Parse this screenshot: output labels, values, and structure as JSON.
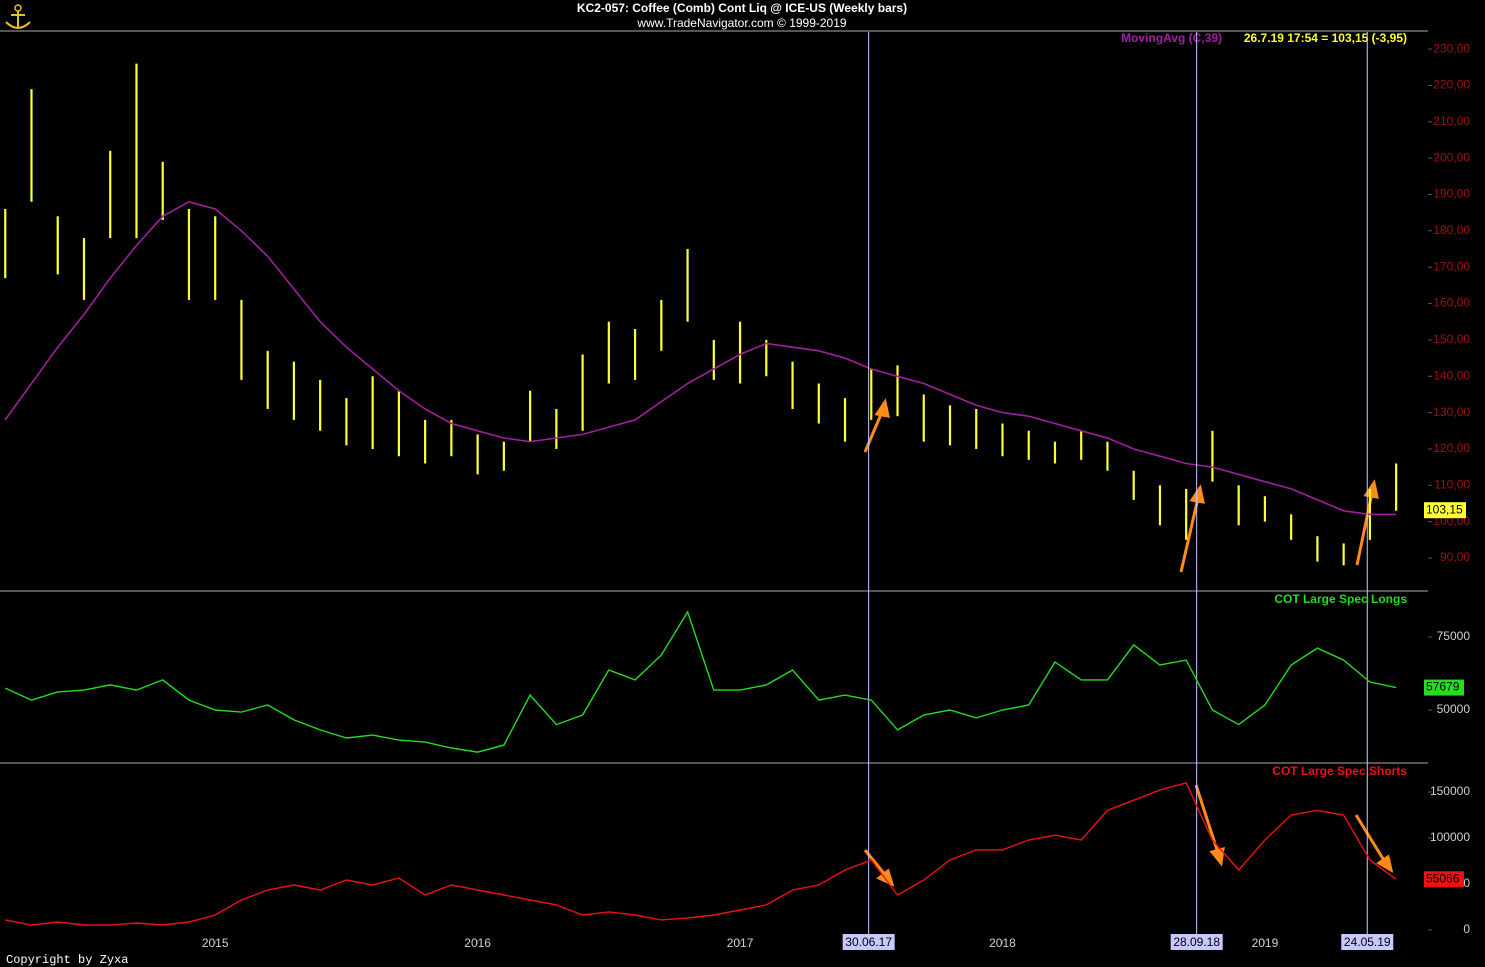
{
  "header": {
    "title": "KC2-057:  Coffee (Comb) Cont Liq @ ICE-US  (Weekly bars)",
    "subtitle": "www.TradeNavigator.com © 1999-2019"
  },
  "footer": "Copyright by Zyxa",
  "chart_data": [
    {
      "type": "range-bar",
      "color": "#ffff33",
      "xlim": [
        2014.18,
        2019.61
      ],
      "ylim": [
        81.2,
        234.7
      ],
      "yticks": [
        {
          "value": 90,
          "label": "90,00"
        },
        {
          "value": 100,
          "label": "100,00"
        },
        {
          "value": 110,
          "label": "110,00"
        },
        {
          "value": 120,
          "label": "120,00"
        },
        {
          "value": 130,
          "label": "130,00"
        },
        {
          "value": 140,
          "label": "140,00"
        },
        {
          "value": 150,
          "label": "150,00"
        },
        {
          "value": 160,
          "label": "160,00"
        },
        {
          "value": 170,
          "label": "170,00"
        },
        {
          "value": 180,
          "label": "180,00"
        },
        {
          "value": 190,
          "label": "190,00"
        },
        {
          "value": 200,
          "label": "200,00"
        },
        {
          "value": 210,
          "label": "210,00"
        },
        {
          "value": 220,
          "label": "220,00"
        },
        {
          "value": 230,
          "label": "230,00"
        }
      ],
      "tick_color": "#a01010",
      "x": [
        2014.2,
        2014.3,
        2014.4,
        2014.5,
        2014.6,
        2014.7,
        2014.8,
        2014.9,
        2015.0,
        2015.1,
        2015.2,
        2015.3,
        2015.4,
        2015.5,
        2015.6,
        2015.7,
        2015.8,
        2015.9,
        2016.0,
        2016.1,
        2016.2,
        2016.3,
        2016.4,
        2016.5,
        2016.6,
        2016.7,
        2016.8,
        2016.9,
        2017.0,
        2017.1,
        2017.2,
        2017.3,
        2017.4,
        2017.5,
        2017.6,
        2017.7,
        2017.8,
        2017.9,
        2018.0,
        2018.1,
        2018.2,
        2018.3,
        2018.4,
        2018.5,
        2018.6,
        2018.7,
        2018.8,
        2018.9,
        2019.0,
        2019.1,
        2019.2,
        2019.3,
        2019.4,
        2019.5
      ],
      "high": [
        186,
        219,
        184,
        178,
        202,
        226,
        199,
        186,
        184,
        161,
        147,
        144,
        139,
        134,
        140,
        136,
        128,
        128,
        124,
        122,
        136,
        131,
        146,
        155,
        153,
        161,
        175,
        150,
        155,
        150,
        144,
        138,
        134,
        142,
        143,
        135,
        132,
        131,
        127,
        125,
        122,
        125,
        122,
        114,
        110,
        109,
        125,
        110,
        107,
        102,
        96,
        94,
        109,
        116
      ],
      "low": [
        167,
        188,
        168,
        161,
        178,
        178,
        183,
        161,
        161,
        139,
        131,
        128,
        125,
        121,
        120,
        118,
        116,
        118,
        113,
        114,
        122,
        120,
        125,
        138,
        139,
        147,
        155,
        139,
        138,
        140,
        131,
        127,
        122,
        128,
        129,
        122,
        121,
        120,
        118,
        117,
        116,
        117,
        114,
        106,
        99,
        95,
        111,
        99,
        100,
        95,
        89,
        88,
        95,
        103
      ],
      "moving_average": {
        "name": "MovingAvg (C,39)",
        "color": "#a020a0",
        "values": [
          128,
          138,
          148,
          157,
          167,
          176,
          184,
          188,
          186,
          180,
          173,
          164,
          155,
          148,
          142,
          136,
          131,
          127,
          125,
          123,
          122,
          123,
          124,
          126,
          128,
          133,
          138,
          142,
          146,
          149,
          148,
          147,
          145,
          142,
          140,
          138,
          135,
          132,
          130,
          129,
          127,
          125,
          123,
          120,
          118,
          116,
          115,
          113,
          111,
          109,
          106,
          103,
          102,
          102
        ]
      },
      "quote": "26.7.19 17:54 = 103,15 (-3,95)",
      "last_price": {
        "value": 103.15,
        "label": "103,15"
      },
      "markers": [
        {
          "x": 2017.49,
          "label": "30.06.17"
        },
        {
          "x": 2018.74,
          "label": "28.09.18"
        },
        {
          "x": 2019.39,
          "label": "24.05.19"
        }
      ]
    },
    {
      "type": "line",
      "xlim": [
        2014.18,
        2019.61
      ],
      "ylim": [
        32200,
        90400
      ],
      "yticks": [
        50000,
        75000
      ],
      "tick_color": "#d0d0d0",
      "x": [
        2014.2,
        2014.3,
        2014.4,
        2014.5,
        2014.6,
        2014.7,
        2014.8,
        2014.9,
        2015.0,
        2015.1,
        2015.2,
        2015.3,
        2015.4,
        2015.5,
        2015.6,
        2015.7,
        2015.8,
        2015.9,
        2016.0,
        2016.1,
        2016.2,
        2016.3,
        2016.4,
        2016.5,
        2016.6,
        2016.7,
        2016.8,
        2016.9,
        2017.0,
        2017.1,
        2017.2,
        2017.3,
        2017.4,
        2017.5,
        2017.6,
        2017.7,
        2017.8,
        2017.9,
        2018.0,
        2018.1,
        2018.2,
        2018.3,
        2018.4,
        2018.5,
        2018.6,
        2018.7,
        2018.8,
        2018.9,
        2019.0,
        2019.1,
        2019.2,
        2019.3,
        2019.4,
        2019.5
      ],
      "series": [
        {
          "name": "COT Large Spec Longs",
          "color": "#22dd22",
          "values": [
            57500,
            53400,
            56200,
            56800,
            58600,
            56800,
            60300,
            53400,
            50000,
            49300,
            51700,
            46600,
            43200,
            40400,
            41400,
            39700,
            39000,
            37000,
            35600,
            38000,
            55100,
            45000,
            48300,
            63700,
            60300,
            68800,
            83600,
            56800,
            56800,
            58600,
            63700,
            53400,
            55100,
            53400,
            43200,
            48300,
            50000,
            47300,
            50000,
            51700,
            66400,
            60300,
            60300,
            72300,
            65400,
            67100,
            50000,
            45000,
            51700,
            65400,
            71200,
            67100,
            59600,
            57679
          ]
        }
      ]
    },
    {
      "type": "line",
      "xlim": [
        2014.18,
        2019.61
      ],
      "ylim": [
        -10900,
        180400
      ],
      "yticks": [
        0,
        50000,
        100000,
        150000
      ],
      "tick_color": "#d0d0d0",
      "xticks": [
        2015,
        2016,
        2017,
        2018,
        2019
      ],
      "x": [
        2014.2,
        2014.3,
        2014.4,
        2014.5,
        2014.6,
        2014.7,
        2014.8,
        2014.9,
        2015.0,
        2015.1,
        2015.2,
        2015.3,
        2015.4,
        2015.5,
        2015.6,
        2015.7,
        2015.8,
        2015.9,
        2016.0,
        2016.1,
        2016.2,
        2016.3,
        2016.4,
        2016.5,
        2016.6,
        2016.7,
        2016.8,
        2016.9,
        2017.0,
        2017.1,
        2017.2,
        2017.3,
        2017.4,
        2017.5,
        2017.6,
        2017.7,
        2017.8,
        2017.9,
        2018.0,
        2018.1,
        2018.2,
        2018.3,
        2018.4,
        2018.5,
        2018.6,
        2018.7,
        2018.8,
        2018.9,
        2019.0,
        2019.1,
        2019.2,
        2019.3,
        2019.4,
        2019.5
      ],
      "series": [
        {
          "name": "COT Large Spec Shorts",
          "color": "#ee1111",
          "values": [
            10900,
            5400,
            8700,
            5400,
            5400,
            7600,
            5400,
            8700,
            16300,
            32600,
            43500,
            48900,
            43500,
            54300,
            48900,
            56500,
            38000,
            48900,
            43500,
            38000,
            32600,
            27200,
            16300,
            19600,
            16300,
            10900,
            13000,
            16300,
            21700,
            27200,
            43500,
            48900,
            65200,
            76100,
            38000,
            54300,
            76100,
            87000,
            87000,
            97800,
            103000,
            97800,
            130000,
            141000,
            152000,
            160000,
            97800,
            65200,
            97800,
            125000,
            130000,
            125000,
            76100,
            55066
          ]
        }
      ]
    }
  ]
}
